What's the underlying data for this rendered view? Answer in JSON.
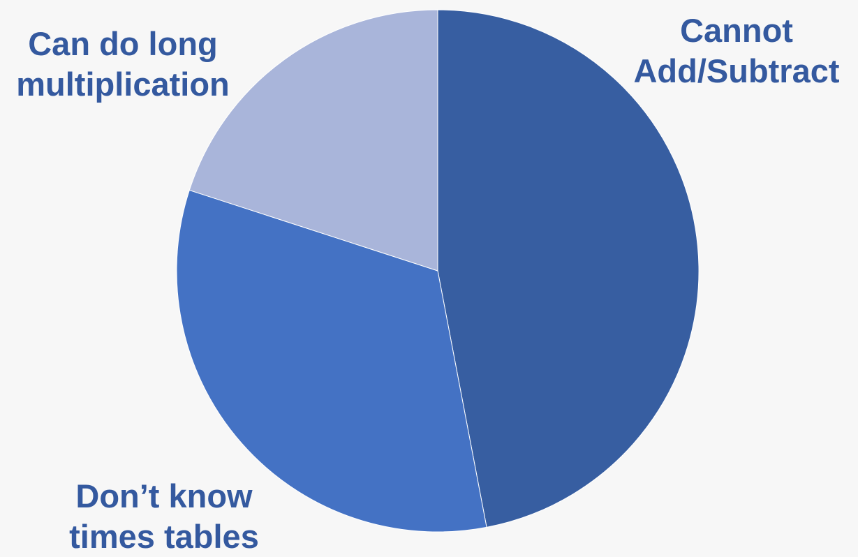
{
  "chart_data": {
    "type": "pie",
    "title": "",
    "start": "12 o'clock",
    "direction": "clockwise",
    "legend": "none (slice labels placed outside the pie)",
    "slices": [
      {
        "label_lines": [
          "Cannot",
          "Add/Subtract"
        ],
        "value": 47,
        "color": "#375ea1"
      },
      {
        "label_lines": [
          "Don’t know",
          "times tables"
        ],
        "value": 33,
        "color": "#4472c4"
      },
      {
        "label_lines": [
          "Can do long",
          "multiplication"
        ],
        "value": 20,
        "color": "#a9b5da"
      }
    ],
    "label_color": "#34599f"
  }
}
